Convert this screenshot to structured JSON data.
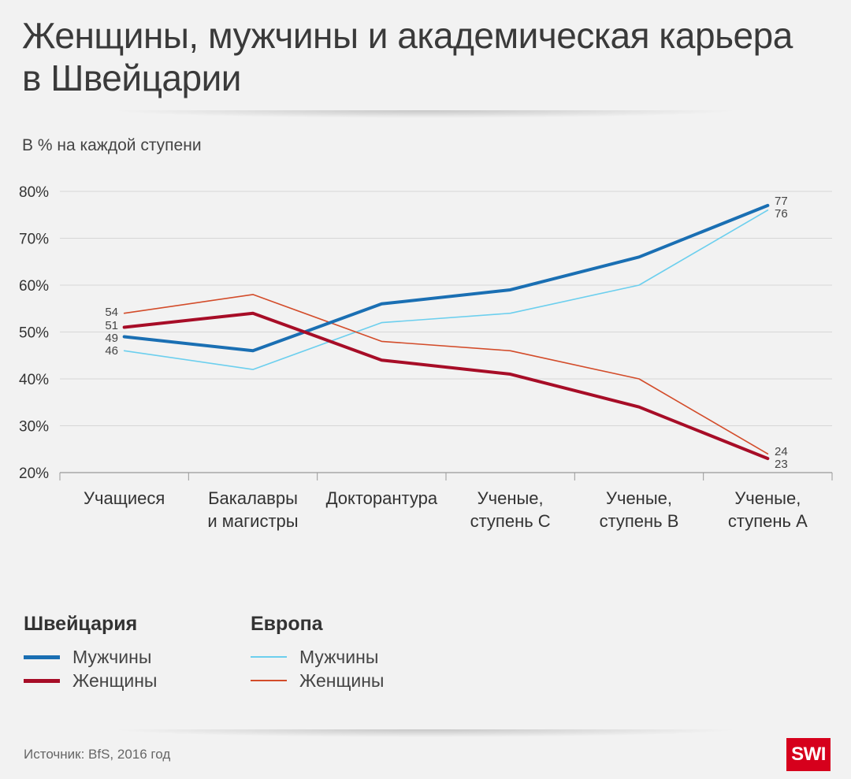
{
  "title": "Женщины, мужчины и академическая карьера в Швейцарии",
  "subtitle": "В % на каждой ступени",
  "source": "Источник: BfS, 2016 год",
  "logo": "SWI",
  "legend": {
    "groups": [
      {
        "heading": "Швейцария",
        "items": [
          {
            "label": "Мужчины",
            "color": "#1a6fb3"
          },
          {
            "label": "Женщины",
            "color": "#a70d27"
          }
        ]
      },
      {
        "heading": "Европа",
        "items": [
          {
            "label": "Мужчины",
            "color": "#6ccfee"
          },
          {
            "label": "Женщины",
            "color": "#d34c2a"
          }
        ]
      }
    ]
  },
  "chart_data": {
    "type": "line",
    "categories": [
      [
        "Учащиеся"
      ],
      [
        "Бакалавры",
        "и магистры"
      ],
      [
        "Докторантура"
      ],
      [
        "Ученые,",
        "ступень С"
      ],
      [
        "Ученые,",
        "ступень В"
      ],
      [
        "Ученые,",
        "ступень А"
      ]
    ],
    "ylim": [
      20,
      80
    ],
    "yticks": [
      20,
      30,
      40,
      50,
      60,
      70,
      80
    ],
    "ytick_suffix": "%",
    "grid": true,
    "series": [
      {
        "name": "Европа Мужчины",
        "color": "#6ccfee",
        "width": 1.6,
        "values": [
          46,
          42,
          52,
          54,
          60,
          76
        ]
      },
      {
        "name": "Европа Женщины",
        "color": "#d34c2a",
        "width": 1.6,
        "values": [
          54,
          58,
          48,
          46,
          40,
          24
        ]
      },
      {
        "name": "Швейцария Мужчины",
        "color": "#1a6fb3",
        "width": 4,
        "values": [
          49,
          46,
          56,
          59,
          66,
          77
        ]
      },
      {
        "name": "Швейцария Женщины",
        "color": "#a70d27",
        "width": 4,
        "values": [
          51,
          54,
          44,
          41,
          34,
          23
        ]
      }
    ],
    "start_labels": [
      "54",
      "51",
      "49",
      "46"
    ],
    "end_labels": [
      "77",
      "76",
      "24",
      "23"
    ]
  }
}
